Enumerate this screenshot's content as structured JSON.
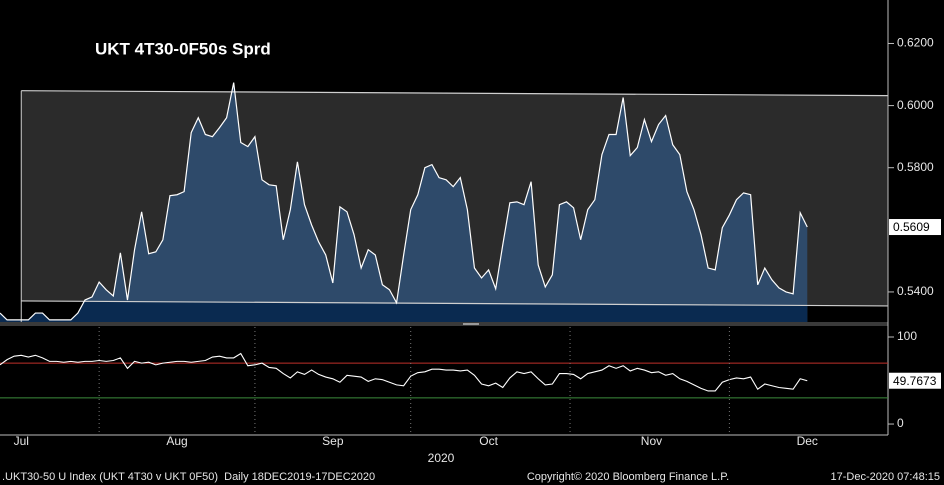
{
  "chart_data": [
    {
      "type": "line",
      "title": "UKT 4T30-0F50s Sprd",
      "xlim": [
        0,
        125.4
      ],
      "ylim": [
        0.53,
        0.634
      ],
      "yticks": [
        {
          "value": 0.54,
          "label": "0.5400"
        },
        {
          "value": 0.58,
          "label": "0.5800"
        },
        {
          "value": 0.6,
          "label": "0.6000"
        },
        {
          "value": 0.62,
          "label": "0.6200"
        }
      ],
      "channel": {
        "x": [
          3,
          125.4
        ],
        "upper": [
          0.6048,
          0.6032
        ],
        "lower": [
          0.5371,
          0.5355
        ]
      },
      "series": [
        {
          "color": "#ffffff",
          "fill": "#2e4c6e",
          "values": [
            0.5332,
            0.531,
            0.531,
            0.531,
            0.531,
            0.5332,
            0.5332,
            0.531,
            0.531,
            0.531,
            0.531,
            0.5332,
            0.5374,
            0.5384,
            0.5432,
            0.5407,
            0.5387,
            0.5526,
            0.5374,
            0.5536,
            0.5658,
            0.5523,
            0.5529,
            0.5568,
            0.571,
            0.5713,
            0.5723,
            0.5913,
            0.5961,
            0.5907,
            0.59,
            0.5929,
            0.5961,
            0.6074,
            0.5881,
            0.5868,
            0.59,
            0.5761,
            0.5745,
            0.5742,
            0.5568,
            0.5665,
            0.5819,
            0.5681,
            0.5616,
            0.5561,
            0.5519,
            0.5429,
            0.5674,
            0.5658,
            0.5584,
            0.5477,
            0.5536,
            0.5519,
            0.5423,
            0.5407,
            0.5365,
            0.5519,
            0.5665,
            0.5713,
            0.58,
            0.581,
            0.5768,
            0.5761,
            0.5739,
            0.5768,
            0.5665,
            0.5477,
            0.5445,
            0.5471,
            0.541,
            0.5552,
            0.5687,
            0.569,
            0.5681,
            0.5755,
            0.5487,
            0.5416,
            0.5455,
            0.5681,
            0.569,
            0.5671,
            0.5568,
            0.5665,
            0.5697,
            0.5842,
            0.5907,
            0.5907,
            0.6026,
            0.5839,
            0.5865,
            0.5955,
            0.5884,
            0.5939,
            0.5968,
            0.5874,
            0.5842,
            0.5723,
            0.5665,
            0.5584,
            0.5477,
            0.5471,
            0.5607,
            0.5648,
            0.5697,
            0.5719,
            0.5713,
            0.5423,
            0.5477,
            0.5439,
            0.5413,
            0.54,
            0.5394,
            0.5655,
            0.5609
          ]
        }
      ]
    },
    {
      "type": "line",
      "x_label": "2020",
      "xlim": [
        0,
        125.4
      ],
      "ylim": [
        -12.6,
        111.5
      ],
      "yticks": [
        100,
        0
      ],
      "ref_lines": [
        {
          "value": 70,
          "color": "#c0302b"
        },
        {
          "value": 30,
          "color": "#3c8c3c"
        }
      ],
      "categories": [
        null,
        null,
        null,
        "Jul",
        null,
        null,
        null,
        null,
        null,
        null,
        null,
        null,
        null,
        null,
        null,
        null,
        null,
        null,
        null,
        null,
        null,
        null,
        null,
        null,
        null,
        "Aug",
        null,
        null,
        null,
        null,
        null,
        null,
        null,
        null,
        null,
        null,
        null,
        null,
        null,
        null,
        null,
        null,
        null,
        null,
        null,
        null,
        null,
        "Sep",
        null,
        null,
        null,
        null,
        null,
        null,
        null,
        null,
        null,
        null,
        null,
        null,
        null,
        null,
        null,
        null,
        null,
        null,
        null,
        null,
        null,
        "Oct",
        null,
        null,
        null,
        null,
        null,
        null,
        null,
        null,
        null,
        null,
        null,
        null,
        null,
        null,
        null,
        null,
        null,
        null,
        null,
        null,
        null,
        null,
        "Nov",
        null,
        null,
        null,
        null,
        null,
        null,
        null,
        null,
        null,
        null,
        null,
        null,
        null,
        null,
        null,
        null,
        null,
        null,
        null,
        null,
        null,
        "Dec"
      ],
      "series": [
        {
          "color": "#ffffff",
          "values": [
            68,
            74,
            78,
            79,
            77,
            79,
            76,
            72,
            72,
            71,
            72,
            71,
            72,
            72,
            73,
            72,
            73,
            76,
            64,
            72,
            70,
            71,
            68,
            70,
            71,
            72,
            72,
            71,
            72,
            73,
            77,
            78,
            76,
            76,
            81,
            67,
            68,
            70,
            65,
            64,
            58,
            53,
            60,
            57,
            62,
            57,
            54,
            52,
            48,
            56,
            55,
            54,
            49,
            52,
            51,
            48,
            45,
            44,
            55,
            59,
            60,
            63,
            63,
            62,
            62,
            61,
            62,
            56,
            46,
            44,
            47,
            42,
            53,
            60,
            58,
            60,
            52,
            45,
            46,
            58,
            58,
            57,
            52,
            58,
            60,
            62,
            67,
            64,
            67,
            61,
            64,
            62,
            59,
            60,
            56,
            58,
            52,
            49,
            45,
            41,
            38,
            38,
            48,
            51,
            53,
            52,
            54,
            40,
            46,
            44,
            42,
            41,
            40,
            52,
            49.7673
          ]
        }
      ]
    }
  ],
  "footer": {
    "left": ".UKT30-50 U Index (UKT 4T30 v UKT 0F50)  Daily 18DEC2019-17DEC2020",
    "center": "Copyright© 2020 Bloomberg Finance L.P.",
    "right": "17-Dec-2020 07:48:15"
  }
}
